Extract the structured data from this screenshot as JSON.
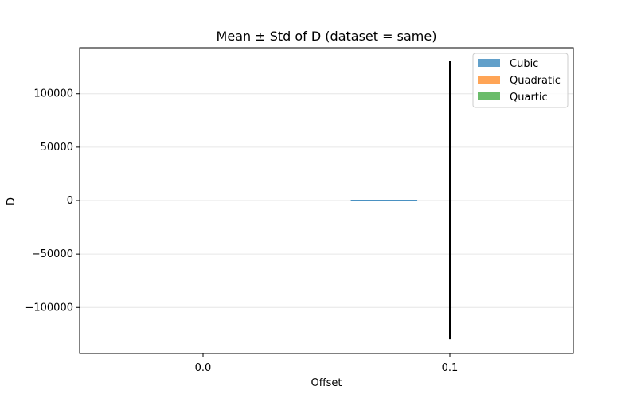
{
  "chart_data": {
    "type": "bar",
    "title": "Mean ± Std of D (dataset = same)",
    "xlabel": "Offset",
    "ylabel": "D",
    "categories": [
      "0.0",
      "0.1"
    ],
    "ylim": [
      -143000,
      143000
    ],
    "yticks": [
      -100000,
      -50000,
      0,
      50000,
      100000
    ],
    "ytick_labels": [
      "−100000",
      "−50000",
      "0",
      "50000",
      "100000"
    ],
    "grid": true,
    "legend_position": "top-right",
    "series": [
      {
        "name": "Cubic",
        "color": "#1f77b4",
        "values": [
          null,
          300
        ],
        "std": [
          null,
          130000
        ]
      },
      {
        "name": "Quadratic",
        "color": "#ff7f0e",
        "values": [
          null,
          null
        ],
        "std": [
          null,
          null
        ]
      },
      {
        "name": "Quartic",
        "color": "#2ca02c",
        "values": [
          null,
          null
        ],
        "std": [
          null,
          null
        ]
      }
    ]
  }
}
